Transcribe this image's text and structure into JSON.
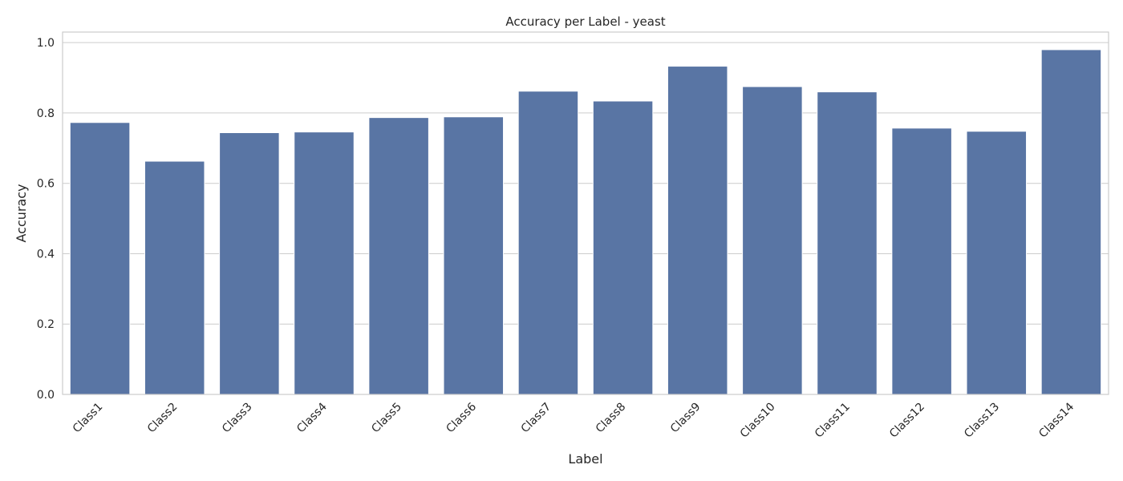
{
  "chart_data": {
    "type": "bar",
    "title": "Accuracy per Label - yeast",
    "xlabel": "Label",
    "ylabel": "Accuracy",
    "categories": [
      "Class1",
      "Class2",
      "Class3",
      "Class4",
      "Class5",
      "Class6",
      "Class7",
      "Class8",
      "Class9",
      "Class10",
      "Class11",
      "Class12",
      "Class13",
      "Class14"
    ],
    "values": [
      0.773,
      0.663,
      0.744,
      0.746,
      0.787,
      0.789,
      0.862,
      0.834,
      0.933,
      0.875,
      0.86,
      0.757,
      0.748,
      0.98
    ],
    "ylim": [
      0,
      1.03
    ],
    "yticks": [
      "0.0",
      "0.2",
      "0.4",
      "0.6",
      "0.8",
      "1.0"
    ],
    "grid": true,
    "bar_color": "#5975a4",
    "grid_color": "#cccccc"
  }
}
